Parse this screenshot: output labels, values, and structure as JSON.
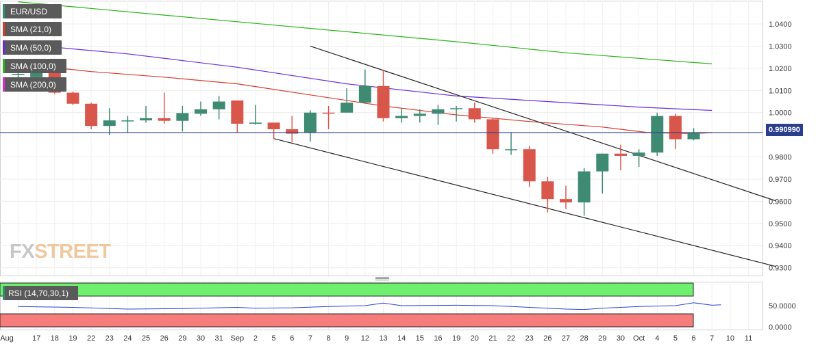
{
  "chart_data": {
    "type": "candlestick",
    "symbol": "EUR/USD",
    "indicators": [
      {
        "name": "SMA (21,0)",
        "color": "#d93a2b"
      },
      {
        "name": "SMA (50,0)",
        "color": "#6a2bd9"
      },
      {
        "name": "SMA (100,0)",
        "color": "#2bb31a"
      },
      {
        "name": "SMA (200,0)",
        "color": "#d92bd9"
      }
    ],
    "last_price_label": "0.990990",
    "watermark": {
      "part1": "FX",
      "part2": "STREET"
    },
    "y_ticks": [
      "1.0400",
      "1.0300",
      "1.0200",
      "1.0100",
      "1.0000",
      "0.9800",
      "0.9700",
      "0.9600",
      "0.9500",
      "0.9400",
      "0.9300"
    ],
    "ylim": [
      0.9265,
      1.0505
    ],
    "x_ticks": [
      "Aug",
      "17",
      "18",
      "19",
      "22",
      "23",
      "24",
      "25",
      "26",
      "29",
      "30",
      "31",
      "Sep",
      "2",
      "5",
      "6",
      "7",
      "8",
      "9",
      "12",
      "13",
      "14",
      "15",
      "16",
      "19",
      "20",
      "21",
      "22",
      "23",
      "26",
      "27",
      "28",
      "29",
      "30",
      "Oct",
      "4",
      "5",
      "6",
      "7",
      "10",
      "11"
    ],
    "candles": [
      {
        "x": "16",
        "o": 1.017,
        "h": 1.02,
        "l": 1.015,
        "c": 1.0175
      },
      {
        "x": "17",
        "o": 1.016,
        "h": 1.02,
        "l": 1.016,
        "c": 1.018
      },
      {
        "x": "18",
        "o": 1.018,
        "h": 1.02,
        "l": 1.0085,
        "c": 1.009
      },
      {
        "x": "19",
        "o": 1.009,
        "h": 1.0095,
        "l": 1.0035,
        "c": 1.004
      },
      {
        "x": "22",
        "o": 1.004,
        "h": 1.0045,
        "l": 0.9925,
        "c": 0.994
      },
      {
        "x": "23",
        "o": 0.994,
        "h": 1.002,
        "l": 0.99,
        "c": 0.9965
      },
      {
        "x": "24",
        "o": 0.9965,
        "h": 0.9985,
        "l": 0.991,
        "c": 0.9965
      },
      {
        "x": "25",
        "o": 0.9965,
        "h": 1.003,
        "l": 0.9955,
        "c": 0.9975
      },
      {
        "x": "26",
        "o": 0.9975,
        "h": 1.009,
        "l": 0.995,
        "c": 0.9963
      },
      {
        "x": "29",
        "o": 0.9963,
        "h": 1.003,
        "l": 0.9915,
        "c": 0.9998
      },
      {
        "x": "30",
        "o": 0.9995,
        "h": 1.005,
        "l": 0.9985,
        "c": 1.0015
      },
      {
        "x": "31",
        "o": 1.0015,
        "h": 1.0075,
        "l": 0.997,
        "c": 1.005
      },
      {
        "x": "Sep",
        "o": 1.0055,
        "h": 1.0055,
        "l": 0.991,
        "c": 0.995
      },
      {
        "x": "2",
        "o": 0.995,
        "h": 1.0035,
        "l": 0.9945,
        "c": 0.9955
      },
      {
        "x": "5",
        "o": 0.9955,
        "h": 0.9955,
        "l": 0.988,
        "c": 0.9925
      },
      {
        "x": "6",
        "o": 0.9925,
        "h": 0.9985,
        "l": 0.9865,
        "c": 0.9905
      },
      {
        "x": "7",
        "o": 0.991,
        "h": 1.001,
        "l": 0.987,
        "c": 1.0
      },
      {
        "x": "8",
        "o": 1.0,
        "h": 1.003,
        "l": 0.9925,
        "c": 0.9998
      },
      {
        "x": "9",
        "o": 1.0,
        "h": 1.011,
        "l": 1.0,
        "c": 1.0045
      },
      {
        "x": "12",
        "o": 1.0045,
        "h": 1.0195,
        "l": 1.004,
        "c": 1.012
      },
      {
        "x": "13",
        "o": 1.012,
        "h": 1.019,
        "l": 0.996,
        "c": 0.9975
      },
      {
        "x": "14",
        "o": 0.9975,
        "h": 1.002,
        "l": 0.9955,
        "c": 0.9985
      },
      {
        "x": "15",
        "o": 0.9985,
        "h": 1.0015,
        "l": 0.9955,
        "c": 0.9995
      },
      {
        "x": "16",
        "o": 0.9995,
        "h": 1.0035,
        "l": 0.9945,
        "c": 1.0015
      },
      {
        "x": "19",
        "o": 1.002,
        "h": 1.003,
        "l": 0.996,
        "c": 1.002
      },
      {
        "x": "20",
        "o": 1.002,
        "h": 1.0045,
        "l": 0.9955,
        "c": 0.997
      },
      {
        "x": "21",
        "o": 0.997,
        "h": 0.9975,
        "l": 0.9815,
        "c": 0.9835
      },
      {
        "x": "22",
        "o": 0.9835,
        "h": 0.991,
        "l": 0.981,
        "c": 0.9835
      },
      {
        "x": "23",
        "o": 0.9835,
        "h": 0.985,
        "l": 0.9665,
        "c": 0.969
      },
      {
        "x": "26",
        "o": 0.969,
        "h": 0.971,
        "l": 0.955,
        "c": 0.961
      },
      {
        "x": "27",
        "o": 0.961,
        "h": 0.967,
        "l": 0.9565,
        "c": 0.9595
      },
      {
        "x": "28",
        "o": 0.9595,
        "h": 0.975,
        "l": 0.9535,
        "c": 0.9735
      },
      {
        "x": "29",
        "o": 0.9735,
        "h": 0.9815,
        "l": 0.9635,
        "c": 0.9815
      },
      {
        "x": "30",
        "o": 0.9815,
        "h": 0.9855,
        "l": 0.974,
        "c": 0.9805
      },
      {
        "x": "Oct",
        "o": 0.9805,
        "h": 0.9835,
        "l": 0.9755,
        "c": 0.982
      },
      {
        "x": "4",
        "o": 0.982,
        "h": 1.0,
        "l": 0.9805,
        "c": 0.9985
      },
      {
        "x": "5",
        "o": 0.9985,
        "h": 0.9995,
        "l": 0.9835,
        "c": 0.988
      },
      {
        "x": "6",
        "o": 0.988,
        "h": 0.993,
        "l": 0.9875,
        "c": 0.991
      }
    ],
    "sma": {
      "SMA (21,0)": [
        [
          0,
          1.022
        ],
        [
          4,
          1.0185
        ],
        [
          8,
          1.016
        ],
        [
          12,
          1.013
        ],
        [
          16,
          1.008
        ],
        [
          20,
          1.003
        ],
        [
          24,
          0.999
        ],
        [
          28,
          0.996
        ],
        [
          32,
          0.9935
        ],
        [
          34.5,
          0.991
        ],
        [
          37,
          0.9905
        ],
        [
          38,
          0.991
        ]
      ],
      "SMA (50,0)": [
        [
          0,
          1.031
        ],
        [
          6,
          1.0265
        ],
        [
          12,
          1.0205
        ],
        [
          18,
          1.013
        ],
        [
          24,
          1.0075
        ],
        [
          30,
          1.0045
        ],
        [
          34,
          1.0025
        ],
        [
          38,
          1.001
        ]
      ],
      "SMA (100,0)": [
        [
          0,
          1.05
        ],
        [
          8,
          1.044
        ],
        [
          16,
          1.038
        ],
        [
          24,
          1.032
        ],
        [
          30,
          1.027
        ],
        [
          34,
          1.0245
        ],
        [
          38,
          1.022
        ]
      ]
    },
    "trendlines": [
      {
        "x1": 16,
        "y1": 1.03,
        "x2": 41.5,
        "y2": 0.9602
      },
      {
        "x1": 14,
        "y1": 0.9883,
        "x2": 41.5,
        "y2": 0.9306
      }
    ],
    "rsi": {
      "label": "RSI (14,70,30,1)",
      "y_ticks": [
        "50.0000",
        "0.0000"
      ],
      "values": [
        [
          0,
          48
        ],
        [
          3,
          46
        ],
        [
          6,
          42
        ],
        [
          9,
          43
        ],
        [
          12,
          46
        ],
        [
          13,
          44
        ],
        [
          15,
          45
        ],
        [
          17,
          48
        ],
        [
          19,
          50
        ],
        [
          20,
          56
        ],
        [
          21,
          50
        ],
        [
          24,
          51
        ],
        [
          26,
          50
        ],
        [
          28,
          46
        ],
        [
          30,
          42
        ],
        [
          31,
          41
        ],
        [
          32,
          44
        ],
        [
          34,
          48
        ],
        [
          36,
          50
        ],
        [
          37,
          57
        ],
        [
          38,
          51
        ],
        [
          38.5,
          52
        ]
      ]
    }
  }
}
